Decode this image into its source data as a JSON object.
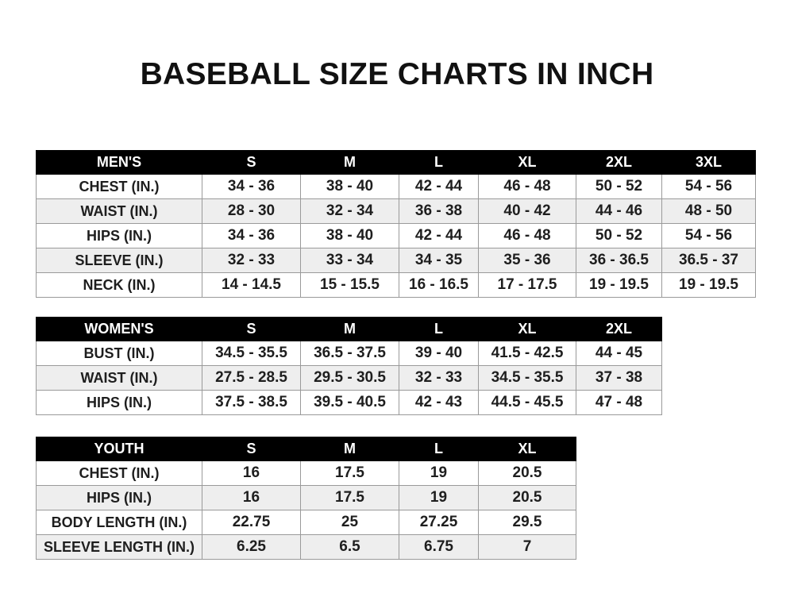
{
  "title": "BASEBALL SIZE CHARTS IN INCH",
  "tables": [
    {
      "headers": [
        "MEN'S",
        "S",
        "M",
        "L",
        "XL",
        "2XL",
        "3XL"
      ],
      "rows": [
        [
          "CHEST (IN.)",
          "34 - 36",
          "38 - 40",
          "42 - 44",
          "46 - 48",
          "50 - 52",
          "54 - 56"
        ],
        [
          "WAIST (IN.)",
          "28 - 30",
          "32 - 34",
          "36 - 38",
          "40 - 42",
          "44 - 46",
          "48 - 50"
        ],
        [
          "HIPS (IN.)",
          "34 - 36",
          "38 - 40",
          "42 - 44",
          "46 - 48",
          "50 - 52",
          "54 - 56"
        ],
        [
          "SLEEVE (IN.)",
          "32 - 33",
          "33 - 34",
          "34 - 35",
          "35 - 36",
          "36 - 36.5",
          "36.5 - 37"
        ],
        [
          "NECK (IN.)",
          "14 - 14.5",
          "15 - 15.5",
          "16 - 16.5",
          "17 - 17.5",
          "19 - 19.5",
          "19 - 19.5"
        ]
      ]
    },
    {
      "headers": [
        "WOMEN'S",
        "S",
        "M",
        "L",
        "XL",
        "2XL"
      ],
      "rows": [
        [
          "BUST (IN.)",
          "34.5 - 35.5",
          "36.5 - 37.5",
          "39 - 40",
          "41.5 - 42.5",
          "44 - 45"
        ],
        [
          "WAIST (IN.)",
          "27.5 - 28.5",
          "29.5 - 30.5",
          "32 - 33",
          "34.5 - 35.5",
          "37 - 38"
        ],
        [
          "HIPS (IN.)",
          "37.5 - 38.5",
          "39.5 - 40.5",
          "42 - 43",
          "44.5 - 45.5",
          "47 - 48"
        ]
      ]
    },
    {
      "headers": [
        "YOUTH",
        "S",
        "M",
        "L",
        "XL"
      ],
      "rows": [
        [
          "CHEST (IN.)",
          "16",
          "17.5",
          "19",
          "20.5"
        ],
        [
          "HIPS (IN.)",
          "16",
          "17.5",
          "19",
          "20.5"
        ],
        [
          "BODY LENGTH (IN.)",
          "22.75",
          "25",
          "27.25",
          "29.5"
        ],
        [
          "SLEEVE LENGTH (IN.)",
          "6.25",
          "6.5",
          "6.75",
          "7"
        ]
      ]
    }
  ]
}
